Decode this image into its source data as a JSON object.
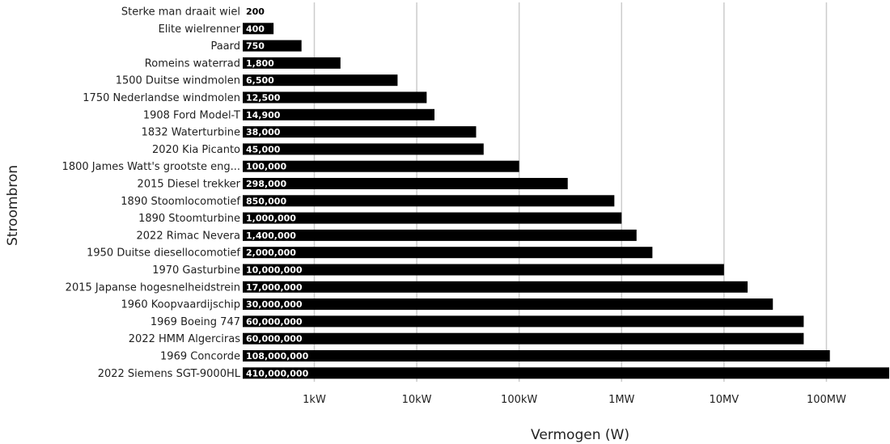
{
  "chart_data": {
    "type": "bar",
    "orientation": "horizontal",
    "x_scale": "log",
    "xlim": [
      200,
      410000000
    ],
    "xlabel": "Vermogen (W)",
    "ylabel": "Stroombron",
    "grid": true,
    "bar_color": "#000000",
    "grid_color": "#cccccc",
    "x_ticks": [
      {
        "value": 1000,
        "label": "1kW"
      },
      {
        "value": 10000,
        "label": "10kW"
      },
      {
        "value": 100000,
        "label": "100kW"
      },
      {
        "value": 1000000,
        "label": "1MW"
      },
      {
        "value": 10000000,
        "label": "10MV"
      },
      {
        "value": 100000000,
        "label": "100MW"
      }
    ],
    "categories": [
      "Sterke man draait wiel",
      "Elite wielrenner",
      "Paard",
      "Romeins waterrad",
      "1500 Duitse windmolen",
      "1750 Nederlandse windmolen",
      "1908 Ford Model-T",
      "1832 Waterturbine",
      "2020 Kia Picanto",
      "1800 James Watt's grootste eng...",
      "2015 Diesel trekker",
      "1890 Stoomlocomotief",
      "1890 Stoomturbine",
      "2022 Rimac Nevera",
      "1950 Duitse diesellocomotief",
      "1970 Gasturbine",
      "2015 Japanse hogesnelheidstrein",
      "1960 Koopvaardijschip",
      "1969 Boeing 747",
      "2022 HMM Algerciras",
      "1969 Concorde",
      "2022 Siemens SGT-9000HL"
    ],
    "values": [
      200,
      400,
      750,
      1800,
      6500,
      12500,
      14900,
      38000,
      45000,
      100000,
      298000,
      850000,
      1000000,
      1400000,
      2000000,
      10000000,
      17000000,
      30000000,
      60000000,
      60000000,
      108000000,
      410000000
    ],
    "value_labels": [
      "200",
      "400",
      "750",
      "1,800",
      "6,500",
      "12,500",
      "14,900",
      "38,000",
      "45,000",
      "100,000",
      "298,000",
      "850,000",
      "1,000,000",
      "1,400,000",
      "2,000,000",
      "10,000,000",
      "17,000,000",
      "30,000,000",
      "60,000,000",
      "60,000,000",
      "108,000,000",
      "410,000,000"
    ]
  }
}
